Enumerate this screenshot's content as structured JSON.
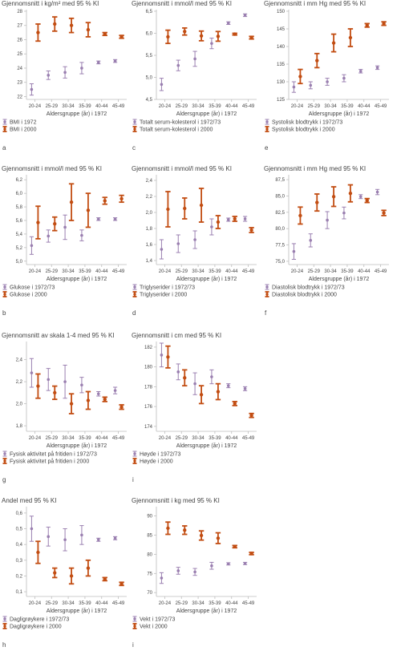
{
  "colors": {
    "series_1972": "#9a7fb0",
    "series_2000": "#c24d12",
    "axis": "#bdbdbd",
    "text": "#444444"
  },
  "icons": {
    "legend_1972": "purple-thin-errorbar-dot-icon",
    "legend_2000": "orange-thick-errorbar-dot-icon"
  },
  "chart_data": [
    {
      "letter": "a",
      "type": "scatter",
      "title": "Gjennomsnitt i kg/m² med 95 % KI",
      "xlabel": "Aldersgruppe (år) i 1972",
      "categories": [
        "20-24",
        "25-29",
        "30-34",
        "35-39",
        "40-44",
        "45-49"
      ],
      "ylim": [
        21.8,
        28
      ],
      "yticks": [
        "22",
        "23",
        "24",
        "25",
        "26",
        "27",
        "28"
      ],
      "series": [
        {
          "name": "BMI i 1972",
          "values": [
            22.5,
            23.5,
            23.7,
            24.0,
            24.4,
            24.5
          ],
          "lo": [
            22.1,
            23.2,
            23.3,
            23.6,
            24.3,
            24.4
          ],
          "hi": [
            22.9,
            23.8,
            24.1,
            24.4,
            24.5,
            24.6
          ]
        },
        {
          "name": "BMI i 2000",
          "values": [
            26.5,
            27.1,
            27.0,
            26.7,
            26.4,
            26.2
          ],
          "lo": [
            25.9,
            26.6,
            26.5,
            26.2,
            26.3,
            26.1
          ],
          "hi": [
            27.1,
            27.6,
            27.5,
            27.2,
            26.5,
            26.3
          ]
        }
      ]
    },
    {
      "letter": "c",
      "type": "scatter",
      "title": "Gjennomsnitt i mmol/l med 95 % KI",
      "xlabel": "Aldersgruppe (år) i 1972",
      "categories": [
        "20-24",
        "25-29",
        "30-34",
        "35-39",
        "40-44",
        "45-49"
      ],
      "ylim": [
        4.5,
        6.5
      ],
      "yticks": [
        "4,5",
        "5,0",
        "5,5",
        "6,0",
        "6,5"
      ],
      "series": [
        {
          "name": "Totalt serum-kolesterol i 1972/73",
          "values": [
            4.84,
            5.27,
            5.42,
            5.77,
            6.23,
            6.41
          ],
          "lo": [
            4.7,
            5.15,
            5.25,
            5.65,
            6.2,
            6.38
          ],
          "hi": [
            4.98,
            5.39,
            5.59,
            5.89,
            6.26,
            6.44
          ]
        },
        {
          "name": "Totalt serum-kolesterol i 2000",
          "values": [
            5.92,
            6.04,
            5.94,
            5.93,
            5.98,
            5.9
          ],
          "lo": [
            5.77,
            5.96,
            5.83,
            5.82,
            5.96,
            5.87
          ],
          "hi": [
            6.07,
            6.12,
            6.05,
            6.04,
            6.0,
            5.93
          ]
        }
      ]
    },
    {
      "letter": "e",
      "type": "scatter",
      "title": "Gjennomsnitt i mm Hg med 95 % KI",
      "xlabel": "Aldersgruppe (år) i 1972",
      "categories": [
        "20-24",
        "25-29",
        "30-34",
        "35-39",
        "40-44",
        "45-49"
      ],
      "ylim": [
        125,
        150
      ],
      "yticks": [
        "125",
        "130",
        "135",
        "140",
        "145",
        "150"
      ],
      "series": [
        {
          "name": "Systolisk blodtrykk i 1972/73",
          "values": [
            128.5,
            129.0,
            130.0,
            131.0,
            133.0,
            134.0
          ],
          "lo": [
            127.0,
            128.0,
            129.0,
            130.0,
            132.5,
            133.5
          ],
          "hi": [
            130.0,
            130.0,
            131.0,
            132.0,
            133.5,
            134.5
          ]
        },
        {
          "name": "Systolisk blodtrykk i 2000",
          "values": [
            131.5,
            136.0,
            141.0,
            142.5,
            146.0,
            146.5
          ],
          "lo": [
            129.5,
            134.0,
            138.5,
            140.0,
            145.5,
            146.0
          ],
          "hi": [
            133.5,
            138.0,
            143.5,
            145.0,
            146.5,
            147.0
          ]
        }
      ]
    },
    {
      "letter": "b",
      "type": "scatter",
      "title": "Gjennomsnitt i mmol/l med 95 % KI",
      "xlabel": "Aldersgruppe (år) i 1972",
      "categories": [
        "20-24",
        "25-29",
        "30-34",
        "35-39",
        "40-44",
        "45-49"
      ],
      "ylim": [
        4.95,
        6.25
      ],
      "yticks": [
        "5,0",
        "5,2",
        "5,4",
        "5,6",
        "5,8",
        "6,0",
        "6,2"
      ],
      "series": [
        {
          "name": "Glukose i 1972/73",
          "values": [
            5.23,
            5.37,
            5.5,
            5.38,
            5.62,
            5.62
          ],
          "lo": [
            5.1,
            5.28,
            5.32,
            5.3,
            5.6,
            5.6
          ],
          "hi": [
            5.36,
            5.46,
            5.68,
            5.46,
            5.64,
            5.64
          ]
        },
        {
          "name": "Glukose i 2000",
          "values": [
            5.57,
            5.55,
            5.87,
            5.75,
            5.89,
            5.92
          ],
          "lo": [
            5.33,
            5.45,
            5.6,
            5.5,
            5.84,
            5.87
          ],
          "hi": [
            5.81,
            5.65,
            6.14,
            6.0,
            5.94,
            5.97
          ]
        }
      ]
    },
    {
      "letter": "d",
      "type": "scatter",
      "title": "Gjennomsnitt i mmol/l med 95 % KI",
      "xlabel": "Aldersgruppe (år) i 1972",
      "categories": [
        "20-24",
        "25-29",
        "30-34",
        "35-39",
        "40-44",
        "45-49"
      ],
      "ylim": [
        1.35,
        2.45
      ],
      "yticks": [
        "1,4",
        "1,6",
        "1,8",
        "2,0",
        "2,2",
        "2,4"
      ],
      "series": [
        {
          "name": "Triglyserider i 1972/73",
          "values": [
            1.54,
            1.61,
            1.66,
            1.82,
            1.91,
            1.92
          ],
          "lo": [
            1.42,
            1.5,
            1.55,
            1.72,
            1.89,
            1.89
          ],
          "hi": [
            1.66,
            1.72,
            1.77,
            1.92,
            1.93,
            1.95
          ]
        },
        {
          "name": "Triglyserider i 2000",
          "values": [
            2.04,
            2.05,
            2.09,
            1.88,
            1.92,
            1.78
          ],
          "lo": [
            1.82,
            1.92,
            1.88,
            1.8,
            1.89,
            1.75
          ],
          "hi": [
            2.26,
            2.18,
            2.3,
            1.96,
            1.95,
            1.81
          ]
        }
      ]
    },
    {
      "letter": "f",
      "type": "scatter",
      "title": "Gjennomsnitt i mm Hg med 95 % KI",
      "xlabel": "Aldersgruppe (år) i 1972",
      "categories": [
        "20-24",
        "25-29",
        "30-34",
        "35-39",
        "40-44",
        "45-49"
      ],
      "ylim": [
        74.5,
        88
      ],
      "yticks": [
        "75,0",
        "77,5",
        "80,0",
        "82,5",
        "85,0",
        "87,5"
      ],
      "series": [
        {
          "name": "Diastolisk blodtrykk i 1972/73",
          "values": [
            76.5,
            78.2,
            81.3,
            82.4,
            84.9,
            85.6
          ],
          "lo": [
            75.3,
            77.2,
            80.0,
            81.5,
            84.6,
            85.2
          ],
          "hi": [
            77.7,
            79.2,
            82.6,
            83.3,
            85.2,
            86.0
          ]
        },
        {
          "name": "Diastolisk blodtrykk i 2000",
          "values": [
            82.0,
            84.0,
            84.9,
            85.4,
            84.3,
            82.4
          ],
          "lo": [
            80.7,
            82.7,
            83.4,
            84.1,
            84.0,
            82.0
          ],
          "hi": [
            83.3,
            85.3,
            86.4,
            86.7,
            84.6,
            82.8
          ]
        }
      ]
    },
    {
      "letter": "g",
      "type": "scatter",
      "title": "Gjennomsnitt av skala 1-4 med 95 % KI",
      "xlabel": "Aldersgruppe (år) i 1972",
      "categories": [
        "20-24",
        "25-29",
        "30-34",
        "35-39",
        "40-44",
        "45-49"
      ],
      "ylim": [
        1.75,
        2.55
      ],
      "yticks": [
        "1,8",
        "2,0",
        "2,2",
        "2,4"
      ],
      "series": [
        {
          "name": "Fysisk aktivitet på fritiden i 1972/73",
          "values": [
            2.28,
            2.22,
            2.2,
            2.17,
            2.09,
            2.12
          ],
          "lo": [
            2.15,
            2.12,
            2.05,
            2.1,
            2.07,
            2.09
          ],
          "hi": [
            2.41,
            2.32,
            2.35,
            2.24,
            2.11,
            2.15
          ]
        },
        {
          "name": "Fysisk aktivitet på fritiden i 2000",
          "values": [
            2.16,
            2.1,
            2.0,
            2.03,
            2.04,
            1.97
          ],
          "lo": [
            2.05,
            2.04,
            1.91,
            1.95,
            2.02,
            1.95
          ],
          "hi": [
            2.27,
            2.16,
            2.09,
            2.11,
            2.06,
            1.99
          ]
        }
      ]
    },
    {
      "letter": "i",
      "type": "scatter",
      "title": "Gjennomsnitt i cm med 95 % KI",
      "xlabel": "Aldersgruppe (år) i 1972",
      "categories": [
        "20-24",
        "25-29",
        "30-34",
        "35-39",
        "40-44",
        "45-49"
      ],
      "ylim": [
        173.5,
        182.4
      ],
      "yticks": [
        "174",
        "176",
        "178",
        "180",
        "182"
      ],
      "series": [
        {
          "name": "Høyde i 1972/73",
          "values": [
            181.2,
            179.5,
            178.3,
            179.0,
            178.1,
            177.8
          ],
          "lo": [
            180.0,
            178.7,
            177.2,
            178.3,
            177.9,
            177.6
          ],
          "hi": [
            182.4,
            180.3,
            179.4,
            179.7,
            178.3,
            178.0
          ]
        },
        {
          "name": "Høyde i 2000",
          "values": [
            181.0,
            178.9,
            177.2,
            177.5,
            176.3,
            175.1
          ],
          "lo": [
            179.9,
            178.1,
            176.3,
            176.7,
            176.1,
            174.9
          ],
          "hi": [
            182.1,
            179.7,
            178.1,
            178.3,
            176.5,
            175.3
          ]
        }
      ]
    },
    {
      "letter": "h",
      "type": "scatter",
      "title": "Andel med 95 % KI",
      "xlabel": "Aldersgruppe (år) i 1972",
      "categories": [
        "20-24",
        "25-29",
        "30-34",
        "35-39",
        "40-44",
        "45-49"
      ],
      "ylim": [
        0.07,
        0.63
      ],
      "yticks": [
        "0,1",
        "0,2",
        "0,3",
        "0,4",
        "0,5",
        "0,6"
      ],
      "series": [
        {
          "name": "Dagligrøykere i 1972/73",
          "values": [
            0.5,
            0.45,
            0.43,
            0.46,
            0.43,
            0.44
          ],
          "lo": [
            0.42,
            0.39,
            0.36,
            0.4,
            0.42,
            0.43
          ],
          "hi": [
            0.58,
            0.51,
            0.5,
            0.52,
            0.44,
            0.45
          ]
        },
        {
          "name": "Dagligrøykere i 2000",
          "values": [
            0.35,
            0.22,
            0.2,
            0.25,
            0.18,
            0.15
          ],
          "lo": [
            0.28,
            0.19,
            0.15,
            0.2,
            0.17,
            0.14
          ],
          "hi": [
            0.42,
            0.25,
            0.25,
            0.3,
            0.19,
            0.16
          ]
        }
      ]
    },
    {
      "letter": "i",
      "type": "scatter",
      "title": "Gjennomsnitt i kg med 95 % KI",
      "xlabel": "Aldersgruppe (år) i 1972",
      "categories": [
        "20-24",
        "25-29",
        "30-34",
        "35-39",
        "40-44",
        "45-49"
      ],
      "ylim": [
        69,
        92
      ],
      "yticks": [
        "70",
        "75",
        "80",
        "85",
        "90"
      ],
      "series": [
        {
          "name": "Vekt i 1972/73",
          "values": [
            73.8,
            75.7,
            75.4,
            77.0,
            77.5,
            77.6
          ],
          "lo": [
            72.4,
            74.8,
            74.5,
            76.1,
            77.2,
            77.3
          ],
          "hi": [
            75.2,
            76.6,
            76.3,
            77.9,
            77.8,
            77.9
          ]
        },
        {
          "name": "Vekt i 2000",
          "values": [
            86.8,
            86.3,
            84.9,
            84.2,
            82.0,
            80.2
          ],
          "lo": [
            85.2,
            85.2,
            83.7,
            82.8,
            81.7,
            79.9
          ],
          "hi": [
            88.4,
            87.4,
            86.1,
            85.6,
            82.3,
            80.5
          ]
        }
      ]
    }
  ]
}
